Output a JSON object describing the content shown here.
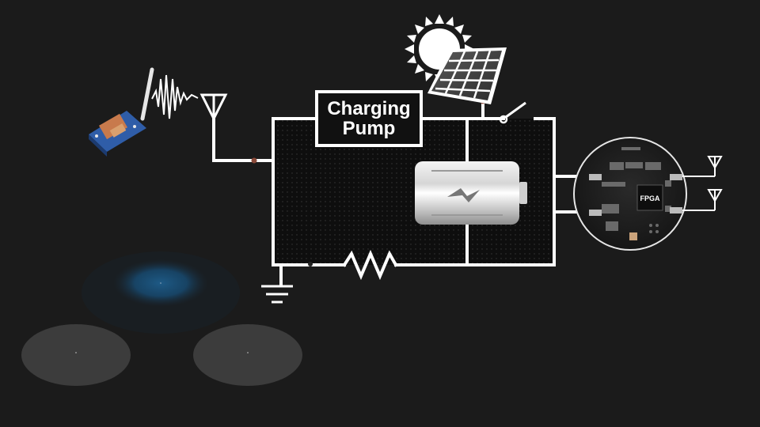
{
  "diagram": {
    "pump_label_line1": "Charging",
    "pump_label_line2": "Pump",
    "chip_label": "FPGA",
    "components": [
      "rf-transmitter-board",
      "receiving-antenna",
      "charging-pump",
      "solar-panel",
      "sun",
      "switch",
      "battery",
      "resistor",
      "ground",
      "sensor-node-board",
      "output-antennas"
    ],
    "colors": {
      "background": "#1b1b1b",
      "wire": "#ffffff",
      "circuit_fill": "#0d0d0d",
      "ripple_blue": "#1e5a86",
      "ripple_grey": "#3c3c3c"
    }
  }
}
